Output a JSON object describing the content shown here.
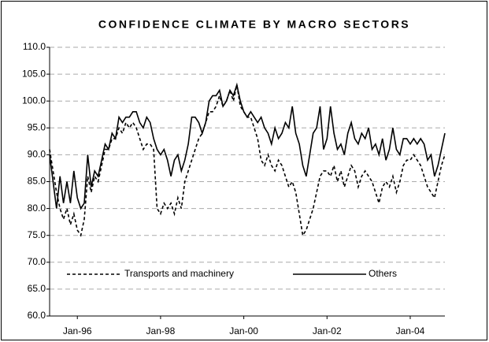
{
  "chart_data": {
    "type": "line",
    "title": "CONFIDENCE CLIMATE BY MACRO SECTORS",
    "categories": [
      null,
      null,
      null,
      null,
      null,
      null,
      null,
      null,
      "Jan-96",
      null,
      null,
      null,
      null,
      null,
      null,
      null,
      null,
      null,
      null,
      null,
      null,
      null,
      null,
      null,
      null,
      null,
      null,
      null,
      null,
      null,
      null,
      null,
      "Jan-98",
      null,
      null,
      null,
      null,
      null,
      null,
      null,
      null,
      null,
      null,
      null,
      null,
      null,
      null,
      null,
      null,
      null,
      null,
      null,
      null,
      null,
      null,
      null,
      "Jan-00",
      null,
      null,
      null,
      null,
      null,
      null,
      null,
      null,
      null,
      null,
      null,
      null,
      null,
      null,
      null,
      null,
      null,
      null,
      null,
      null,
      null,
      null,
      null,
      "Jan-02",
      null,
      null,
      null,
      null,
      null,
      null,
      null,
      null,
      null,
      null,
      null,
      null,
      null,
      null,
      null,
      null,
      null,
      null,
      null,
      null,
      null,
      null,
      null,
      "Jan-04",
      null,
      null,
      null,
      null,
      null,
      null,
      null,
      null,
      null,
      null
    ],
    "series": [
      {
        "name": "Transports and machinery",
        "color": "#000000",
        "style": "dashed",
        "values": [
          91,
          87,
          83,
          80,
          78,
          80,
          77,
          79,
          76,
          75,
          78,
          86,
          83,
          86,
          85,
          88,
          91,
          91,
          93,
          93,
          95,
          94,
          96,
          95,
          96,
          95,
          93,
          91,
          92,
          92,
          91,
          80,
          79,
          81,
          80,
          81,
          79,
          82,
          80,
          85,
          87,
          89,
          91,
          93,
          94,
          96,
          98,
          98,
          99,
          101,
          99,
          100,
          102,
          100,
          103,
          99,
          98,
          97,
          97,
          95,
          93,
          89,
          88,
          90,
          88,
          87,
          89,
          88,
          86,
          84,
          85,
          83,
          79,
          75,
          76,
          78,
          80,
          83,
          86,
          87,
          87,
          86,
          88,
          85,
          87,
          84,
          86,
          88,
          87,
          84,
          86,
          87,
          86,
          85,
          83,
          81,
          84,
          85,
          84,
          86,
          83,
          85,
          88,
          89,
          89,
          90,
          89,
          88,
          86,
          84,
          83,
          82,
          85,
          88,
          90
        ]
      },
      {
        "name": "Others",
        "color": "#000000",
        "style": "solid",
        "values": [
          90,
          85,
          80,
          86,
          81,
          85,
          81,
          87,
          82,
          80,
          81,
          90,
          84,
          87,
          86,
          89,
          92,
          91,
          94,
          93,
          97,
          96,
          97,
          97,
          98,
          98,
          96,
          95,
          97,
          96,
          93,
          91,
          90,
          91,
          89,
          86,
          89,
          90,
          87,
          89,
          92,
          97,
          97,
          96,
          94,
          96,
          100,
          101,
          101,
          102,
          99,
          100,
          102,
          101,
          103,
          100,
          98,
          97,
          98,
          97,
          96,
          97,
          95,
          94,
          92,
          95,
          93,
          94,
          96,
          95,
          99,
          94,
          92,
          88,
          86,
          90,
          94,
          95,
          99,
          91,
          93,
          99,
          94,
          91,
          92,
          90,
          94,
          96,
          93,
          92,
          94,
          93,
          95,
          91,
          92,
          90,
          93,
          89,
          91,
          95,
          91,
          90,
          93,
          93,
          92,
          93,
          92,
          93,
          92,
          89,
          90,
          86,
          88,
          91,
          94
        ]
      }
    ],
    "ylim": [
      60,
      110
    ],
    "yticks": [
      {
        "value": 60,
        "label": "60.0"
      },
      {
        "value": 65,
        "label": "65.0"
      },
      {
        "value": 70,
        "label": "70.0"
      },
      {
        "value": 75,
        "label": "75.0"
      },
      {
        "value": 80,
        "label": "80.0"
      },
      {
        "value": 85,
        "label": "85.0"
      },
      {
        "value": 90,
        "label": "90.0"
      },
      {
        "value": 95,
        "label": "95.0"
      },
      {
        "value": 100,
        "label": "100.0"
      },
      {
        "value": 105,
        "label": "105.0"
      },
      {
        "value": 110,
        "label": "110.0"
      }
    ],
    "grid": true,
    "legend": "bottom"
  }
}
